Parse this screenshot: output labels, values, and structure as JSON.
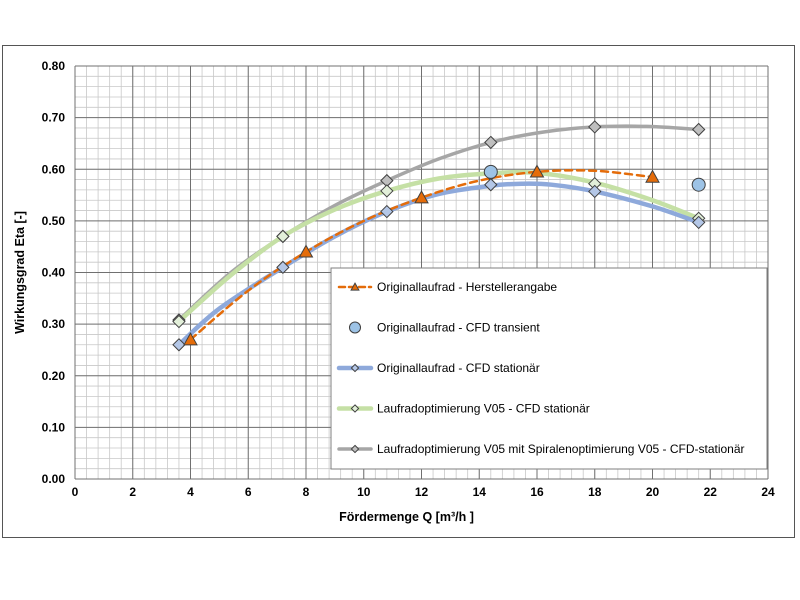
{
  "chart_data": {
    "type": "line",
    "title": "",
    "xlabel": "Fördermenge Q [m³/h ]",
    "ylabel": "Wirkungsgrad Eta [-]",
    "xlim": [
      0,
      24
    ],
    "ylim": [
      0,
      0.8
    ],
    "x_ticks": [
      "0",
      "2",
      "4",
      "6",
      "8",
      "10",
      "12",
      "14",
      "16",
      "18",
      "20",
      "22",
      "24"
    ],
    "y_ticks": [
      "0.00",
      "0.10",
      "0.20",
      "0.30",
      "0.40",
      "0.50",
      "0.60",
      "0.70",
      "0.80"
    ],
    "grid": "major and minor",
    "legend_position": "inside, right",
    "series": [
      {
        "name": "Originallaufrad - Herstellerangabe",
        "color": "#E46C0A",
        "line_style": "dashed",
        "marker": "triangle",
        "x": [
          4.0,
          8.0,
          12.0,
          16.0,
          20.0
        ],
        "y": [
          0.27,
          0.44,
          0.545,
          0.595,
          0.585
        ],
        "curve": [
          [
            4.0,
            0.27
          ],
          [
            6,
            0.365
          ],
          [
            8,
            0.44
          ],
          [
            10,
            0.5
          ],
          [
            12,
            0.545
          ],
          [
            14,
            0.578
          ],
          [
            16,
            0.595
          ],
          [
            18,
            0.597
          ],
          [
            20,
            0.585
          ]
        ]
      },
      {
        "name": "Originallaufrad - CFD transient",
        "color": "#9DC3E6",
        "line_style": "none",
        "marker": "circle",
        "x": [
          14.4,
          21.6
        ],
        "y": [
          0.595,
          0.57
        ],
        "curve": []
      },
      {
        "name": "Originallaufrad - CFD stationär",
        "color": "#8EA9DB",
        "line_style": "solid",
        "marker": "diamond",
        "x": [
          3.6,
          7.2,
          10.8,
          14.4,
          18.0,
          21.6
        ],
        "y": [
          0.26,
          0.41,
          0.518,
          0.57,
          0.557,
          0.497
        ],
        "curve": [
          [
            3.6,
            0.26
          ],
          [
            5,
            0.33
          ],
          [
            7.2,
            0.41
          ],
          [
            9,
            0.47
          ],
          [
            10.8,
            0.518
          ],
          [
            12.6,
            0.552
          ],
          [
            14.4,
            0.568
          ],
          [
            15.5,
            0.572
          ],
          [
            16.5,
            0.57
          ],
          [
            18,
            0.557
          ],
          [
            20,
            0.528
          ],
          [
            21.6,
            0.497
          ]
        ]
      },
      {
        "name": "Laufradoptimierung V05 - CFD stationär",
        "color": "#C5E0A5",
        "line_style": "solid",
        "marker": "diamond",
        "x": [
          3.6,
          7.2,
          10.8,
          14.4,
          18.0,
          21.6
        ],
        "y": [
          0.305,
          0.47,
          0.558,
          0.59,
          0.572,
          0.505
        ],
        "curve": [
          [
            3.6,
            0.305
          ],
          [
            5.4,
            0.395
          ],
          [
            7.2,
            0.47
          ],
          [
            9,
            0.522
          ],
          [
            10.8,
            0.558
          ],
          [
            12.6,
            0.582
          ],
          [
            14.4,
            0.592
          ],
          [
            16,
            0.593
          ],
          [
            18,
            0.574
          ],
          [
            20,
            0.54
          ],
          [
            21.6,
            0.505
          ]
        ]
      },
      {
        "name": "Laufradoptimierung V05 mit Spiralenoptimierung V05 - CFD-stationär",
        "color": "#A6A6A6",
        "line_style": "solid",
        "marker": "diamond",
        "x": [
          3.6,
          7.2,
          10.8,
          14.4,
          18.0,
          21.6
        ],
        "y": [
          0.308,
          0.47,
          0.578,
          0.652,
          0.682,
          0.677
        ],
        "curve": [
          [
            3.6,
            0.308
          ],
          [
            5.4,
            0.4
          ],
          [
            7.2,
            0.47
          ],
          [
            9,
            0.53
          ],
          [
            10.8,
            0.578
          ],
          [
            12.6,
            0.62
          ],
          [
            14.4,
            0.652
          ],
          [
            16.2,
            0.672
          ],
          [
            18,
            0.682
          ],
          [
            19.8,
            0.683
          ],
          [
            21.6,
            0.677
          ]
        ]
      }
    ]
  }
}
